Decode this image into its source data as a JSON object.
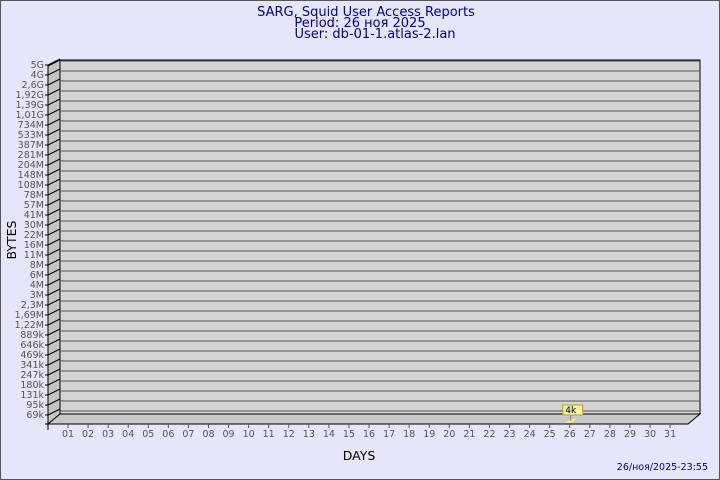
{
  "title": "SARG, Squid User Access Reports",
  "period": "Period: 26 ноя 2025",
  "user": "User: db-01-1.atlas-2.lan",
  "timestamp": "26/ноя/2025-23:55",
  "chart_data": {
    "type": "bar",
    "xlabel": "DAYS",
    "ylabel": "BYTES",
    "y_scale": "log",
    "grid": true,
    "y_tick_labels": [
      "5G",
      "4G",
      "2,6G",
      "1,92G",
      "1,39G",
      "1,01G",
      "734M",
      "533M",
      "387M",
      "281M",
      "204M",
      "148M",
      "108M",
      "78M",
      "57M",
      "41M",
      "30M",
      "22M",
      "16M",
      "11M",
      "8M",
      "6M",
      "4M",
      "3M",
      "2,3M",
      "1,69M",
      "1,22M",
      "889k",
      "646k",
      "469k",
      "341k",
      "247k",
      "180k",
      "131k",
      "95k",
      "69k"
    ],
    "categories": [
      "01",
      "02",
      "03",
      "04",
      "05",
      "06",
      "07",
      "08",
      "09",
      "10",
      "11",
      "12",
      "13",
      "14",
      "15",
      "16",
      "17",
      "18",
      "19",
      "20",
      "21",
      "22",
      "23",
      "24",
      "25",
      "26",
      "27",
      "28",
      "29",
      "30",
      "31"
    ],
    "bars": [
      {
        "day": "26",
        "value_label": "4k"
      }
    ],
    "colors": {
      "wall": "#d3d3d3",
      "bar": "#ffe88a",
      "label_bg": "#f0f0b0",
      "title": "#00008b"
    }
  }
}
